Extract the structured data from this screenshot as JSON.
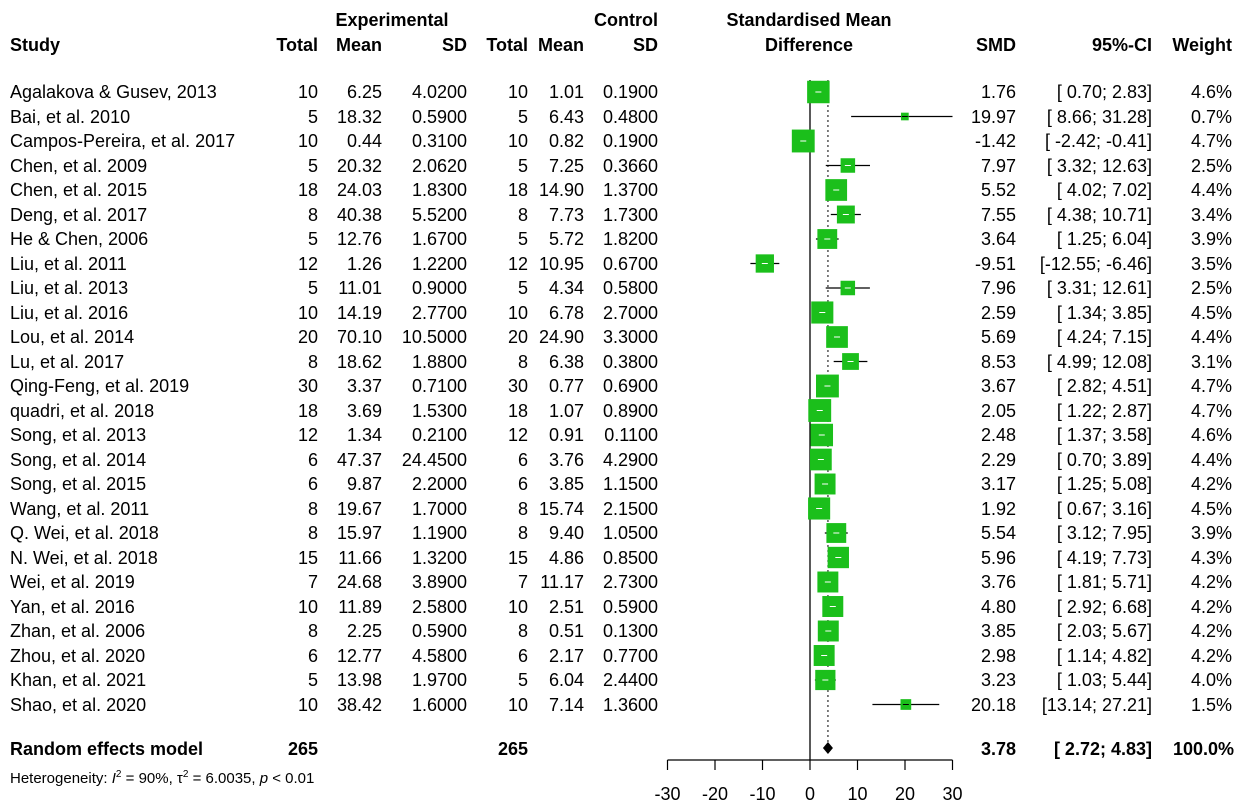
{
  "header": {
    "study": "Study",
    "experimental": "Experimental",
    "control": "Control",
    "smd_title_1": "Standardised Mean",
    "smd_title_2": "Difference",
    "total": "Total",
    "mean": "Mean",
    "sd": "SD",
    "smd": "SMD",
    "ci": "95%-CI",
    "weight": "Weight"
  },
  "studies": [
    {
      "name": "Agalakova & Gusev, 2013",
      "e_total": "10",
      "e_mean": "6.25",
      "e_sd": "4.0200",
      "c_total": "10",
      "c_mean": "1.01",
      "c_sd": "0.1900",
      "smd": "1.76",
      "ci": "[ 0.70; 2.83]",
      "weight": "4.6%"
    },
    {
      "name": "Bai, et al. 2010",
      "e_total": "5",
      "e_mean": "18.32",
      "e_sd": "0.5900",
      "c_total": "5",
      "c_mean": "6.43",
      "c_sd": "0.4800",
      "smd": "19.97",
      "ci": "[ 8.66; 31.28]",
      "weight": "0.7%"
    },
    {
      "name": "Campos-Pereira, et al. 2017",
      "e_total": "10",
      "e_mean": "0.44",
      "e_sd": "0.3100",
      "c_total": "10",
      "c_mean": "0.82",
      "c_sd": "0.1900",
      "smd": "-1.42",
      "ci": "[ -2.42; -0.41]",
      "weight": "4.7%"
    },
    {
      "name": "Chen, et al. 2009",
      "e_total": "5",
      "e_mean": "20.32",
      "e_sd": "2.0620",
      "c_total": "5",
      "c_mean": "7.25",
      "c_sd": "0.3660",
      "smd": "7.97",
      "ci": "[ 3.32; 12.63]",
      "weight": "2.5%"
    },
    {
      "name": "Chen, et al. 2015",
      "e_total": "18",
      "e_mean": "24.03",
      "e_sd": "1.8300",
      "c_total": "18",
      "c_mean": "14.90",
      "c_sd": "1.3700",
      "smd": "5.52",
      "ci": "[ 4.02; 7.02]",
      "weight": "4.4%"
    },
    {
      "name": "Deng, et al. 2017",
      "e_total": "8",
      "e_mean": "40.38",
      "e_sd": "5.5200",
      "c_total": "8",
      "c_mean": "7.73",
      "c_sd": "1.7300",
      "smd": "7.55",
      "ci": "[ 4.38; 10.71]",
      "weight": "3.4%"
    },
    {
      "name": "He & Chen, 2006",
      "e_total": "5",
      "e_mean": "12.76",
      "e_sd": "1.6700",
      "c_total": "5",
      "c_mean": "5.72",
      "c_sd": "1.8200",
      "smd": "3.64",
      "ci": "[ 1.25; 6.04]",
      "weight": "3.9%"
    },
    {
      "name": "Liu, et al. 2011",
      "e_total": "12",
      "e_mean": "1.26",
      "e_sd": "1.2200",
      "c_total": "12",
      "c_mean": "10.95",
      "c_sd": "0.6700",
      "smd": "-9.51",
      "ci": "[-12.55; -6.46]",
      "weight": "3.5%"
    },
    {
      "name": "Liu, et al. 2013",
      "e_total": "5",
      "e_mean": "11.01",
      "e_sd": "0.9000",
      "c_total": "5",
      "c_mean": "4.34",
      "c_sd": "0.5800",
      "smd": "7.96",
      "ci": "[ 3.31; 12.61]",
      "weight": "2.5%"
    },
    {
      "name": "Liu, et al. 2016",
      "e_total": "10",
      "e_mean": "14.19",
      "e_sd": "2.7700",
      "c_total": "10",
      "c_mean": "6.78",
      "c_sd": "2.7000",
      "smd": "2.59",
      "ci": "[ 1.34; 3.85]",
      "weight": "4.5%"
    },
    {
      "name": "Lou, et al. 2014",
      "e_total": "20",
      "e_mean": "70.10",
      "e_sd": "10.5000",
      "c_total": "20",
      "c_mean": "24.90",
      "c_sd": "3.3000",
      "smd": "5.69",
      "ci": "[ 4.24; 7.15]",
      "weight": "4.4%"
    },
    {
      "name": "Lu, et al. 2017",
      "e_total": "8",
      "e_mean": "18.62",
      "e_sd": "1.8800",
      "c_total": "8",
      "c_mean": "6.38",
      "c_sd": "0.3800",
      "smd": "8.53",
      "ci": "[ 4.99; 12.08]",
      "weight": "3.1%"
    },
    {
      "name": "Qing-Feng, et al. 2019",
      "e_total": "30",
      "e_mean": "3.37",
      "e_sd": "0.7100",
      "c_total": "30",
      "c_mean": "0.77",
      "c_sd": "0.6900",
      "smd": "3.67",
      "ci": "[ 2.82; 4.51]",
      "weight": "4.7%"
    },
    {
      "name": "quadri, et al. 2018",
      "e_total": "18",
      "e_mean": "3.69",
      "e_sd": "1.5300",
      "c_total": "18",
      "c_mean": "1.07",
      "c_sd": "0.8900",
      "smd": "2.05",
      "ci": "[ 1.22; 2.87]",
      "weight": "4.7%"
    },
    {
      "name": "Song, et al. 2013",
      "e_total": "12",
      "e_mean": "1.34",
      "e_sd": "0.2100",
      "c_total": "12",
      "c_mean": "0.91",
      "c_sd": "0.1100",
      "smd": "2.48",
      "ci": "[ 1.37; 3.58]",
      "weight": "4.6%"
    },
    {
      "name": "Song, et al. 2014",
      "e_total": "6",
      "e_mean": "47.37",
      "e_sd": "24.4500",
      "c_total": "6",
      "c_mean": "3.76",
      "c_sd": "4.2900",
      "smd": "2.29",
      "ci": "[ 0.70; 3.89]",
      "weight": "4.4%"
    },
    {
      "name": "Song, et al. 2015",
      "e_total": "6",
      "e_mean": "9.87",
      "e_sd": "2.2000",
      "c_total": "6",
      "c_mean": "3.85",
      "c_sd": "1.1500",
      "smd": "3.17",
      "ci": "[ 1.25; 5.08]",
      "weight": "4.2%"
    },
    {
      "name": "Wang, et al. 2011",
      "e_total": "8",
      "e_mean": "19.67",
      "e_sd": "1.7000",
      "c_total": "8",
      "c_mean": "15.74",
      "c_sd": "2.1500",
      "smd": "1.92",
      "ci": "[ 0.67; 3.16]",
      "weight": "4.5%"
    },
    {
      "name": "Q. Wei, et al. 2018",
      "e_total": "8",
      "e_mean": "15.97",
      "e_sd": "1.1900",
      "c_total": "8",
      "c_mean": "9.40",
      "c_sd": "1.0500",
      "smd": "5.54",
      "ci": "[ 3.12; 7.95]",
      "weight": "3.9%"
    },
    {
      "name": "N. Wei, et al. 2018",
      "e_total": "15",
      "e_mean": "11.66",
      "e_sd": "1.3200",
      "c_total": "15",
      "c_mean": "4.86",
      "c_sd": "0.8500",
      "smd": "5.96",
      "ci": "[ 4.19; 7.73]",
      "weight": "4.3%"
    },
    {
      "name": "Wei, et al. 2019",
      "e_total": "7",
      "e_mean": "24.68",
      "e_sd": "3.8900",
      "c_total": "7",
      "c_mean": "11.17",
      "c_sd": "2.7300",
      "smd": "3.76",
      "ci": "[ 1.81; 5.71]",
      "weight": "4.2%"
    },
    {
      "name": "Yan, et al. 2016",
      "e_total": "10",
      "e_mean": "11.89",
      "e_sd": "2.5800",
      "c_total": "10",
      "c_mean": "2.51",
      "c_sd": "0.5900",
      "smd": "4.80",
      "ci": "[ 2.92; 6.68]",
      "weight": "4.2%"
    },
    {
      "name": "Zhan, et al. 2006",
      "e_total": "8",
      "e_mean": "2.25",
      "e_sd": "0.5900",
      "c_total": "8",
      "c_mean": "0.51",
      "c_sd": "0.1300",
      "smd": "3.85",
      "ci": "[ 2.03; 5.67]",
      "weight": "4.2%"
    },
    {
      "name": "Zhou, et al. 2020",
      "e_total": "6",
      "e_mean": "12.77",
      "e_sd": "4.5800",
      "c_total": "6",
      "c_mean": "2.17",
      "c_sd": "0.7700",
      "smd": "2.98",
      "ci": "[ 1.14; 4.82]",
      "weight": "4.2%"
    },
    {
      "name": "Khan, et al. 2021",
      "e_total": "5",
      "e_mean": "13.98",
      "e_sd": "1.9700",
      "c_total": "5",
      "c_mean": "6.04",
      "c_sd": "2.4400",
      "smd": "3.23",
      "ci": "[ 1.03; 5.44]",
      "weight": "4.0%"
    },
    {
      "name": "Shao, et al. 2020",
      "e_total": "10",
      "e_mean": "38.42",
      "e_sd": "1.6000",
      "c_total": "10",
      "c_mean": "7.14",
      "c_sd": "1.3600",
      "smd": "20.18",
      "ci": "[13.14; 27.21]",
      "weight": "1.5%"
    }
  ],
  "summary": {
    "label": "Random effects model",
    "e_total": "265",
    "c_total": "265",
    "smd": "3.78",
    "ci": "[ 2.72; 4.83]",
    "weight": "100.0%",
    "heterogeneity_prefix": "Heterogeneity: ",
    "heterogeneity_i2": "I",
    "heterogeneity_i2_sup": "2",
    "heterogeneity_i2_val": " = 90%, ",
    "heterogeneity_tau": "τ",
    "heterogeneity_tau_sup": "2",
    "heterogeneity_tau_val": " = 6.0035, ",
    "heterogeneity_p": "p",
    "heterogeneity_p_val": " < 0.01"
  },
  "chart_data": {
    "type": "forest",
    "x_ticks": [
      -30,
      -20,
      -10,
      0,
      10,
      20,
      30
    ],
    "x_tick_labels": [
      "-30",
      "-20",
      "-10",
      "0",
      "10",
      "20",
      "30"
    ],
    "xlim": [
      -30,
      30
    ],
    "null_value": 0,
    "pooled": {
      "est": 3.78,
      "lower": 2.72,
      "upper": 4.83
    },
    "points": [
      {
        "est": 1.76,
        "lower": 0.7,
        "upper": 2.83,
        "weight": 4.6
      },
      {
        "est": 19.97,
        "lower": 8.66,
        "upper": 31.28,
        "weight": 0.7
      },
      {
        "est": -1.42,
        "lower": -2.42,
        "upper": -0.41,
        "weight": 4.7
      },
      {
        "est": 7.97,
        "lower": 3.32,
        "upper": 12.63,
        "weight": 2.5
      },
      {
        "est": 5.52,
        "lower": 4.02,
        "upper": 7.02,
        "weight": 4.4
      },
      {
        "est": 7.55,
        "lower": 4.38,
        "upper": 10.71,
        "weight": 3.4
      },
      {
        "est": 3.64,
        "lower": 1.25,
        "upper": 6.04,
        "weight": 3.9
      },
      {
        "est": -9.51,
        "lower": -12.55,
        "upper": -6.46,
        "weight": 3.5
      },
      {
        "est": 7.96,
        "lower": 3.31,
        "upper": 12.61,
        "weight": 2.5
      },
      {
        "est": 2.59,
        "lower": 1.34,
        "upper": 3.85,
        "weight": 4.5
      },
      {
        "est": 5.69,
        "lower": 4.24,
        "upper": 7.15,
        "weight": 4.4
      },
      {
        "est": 8.53,
        "lower": 4.99,
        "upper": 12.08,
        "weight": 3.1
      },
      {
        "est": 3.67,
        "lower": 2.82,
        "upper": 4.51,
        "weight": 4.7
      },
      {
        "est": 2.05,
        "lower": 1.22,
        "upper": 2.87,
        "weight": 4.7
      },
      {
        "est": 2.48,
        "lower": 1.37,
        "upper": 3.58,
        "weight": 4.6
      },
      {
        "est": 2.29,
        "lower": 0.7,
        "upper": 3.89,
        "weight": 4.4
      },
      {
        "est": 3.17,
        "lower": 1.25,
        "upper": 5.08,
        "weight": 4.2
      },
      {
        "est": 1.92,
        "lower": 0.67,
        "upper": 3.16,
        "weight": 4.5
      },
      {
        "est": 5.54,
        "lower": 3.12,
        "upper": 7.95,
        "weight": 3.9
      },
      {
        "est": 5.96,
        "lower": 4.19,
        "upper": 7.73,
        "weight": 4.3
      },
      {
        "est": 3.76,
        "lower": 1.81,
        "upper": 5.71,
        "weight": 4.2
      },
      {
        "est": 4.8,
        "lower": 2.92,
        "upper": 6.68,
        "weight": 4.2
      },
      {
        "est": 3.85,
        "lower": 2.03,
        "upper": 5.67,
        "weight": 4.2
      },
      {
        "est": 2.98,
        "lower": 1.14,
        "upper": 4.82,
        "weight": 4.2
      },
      {
        "est": 3.23,
        "lower": 1.03,
        "upper": 5.44,
        "weight": 4.0
      },
      {
        "est": 20.18,
        "lower": 13.14,
        "upper": 27.21,
        "weight": 1.5
      }
    ],
    "colors": {
      "box": "#1bbf1b",
      "line": "#000000",
      "diamond": "#000000"
    }
  }
}
